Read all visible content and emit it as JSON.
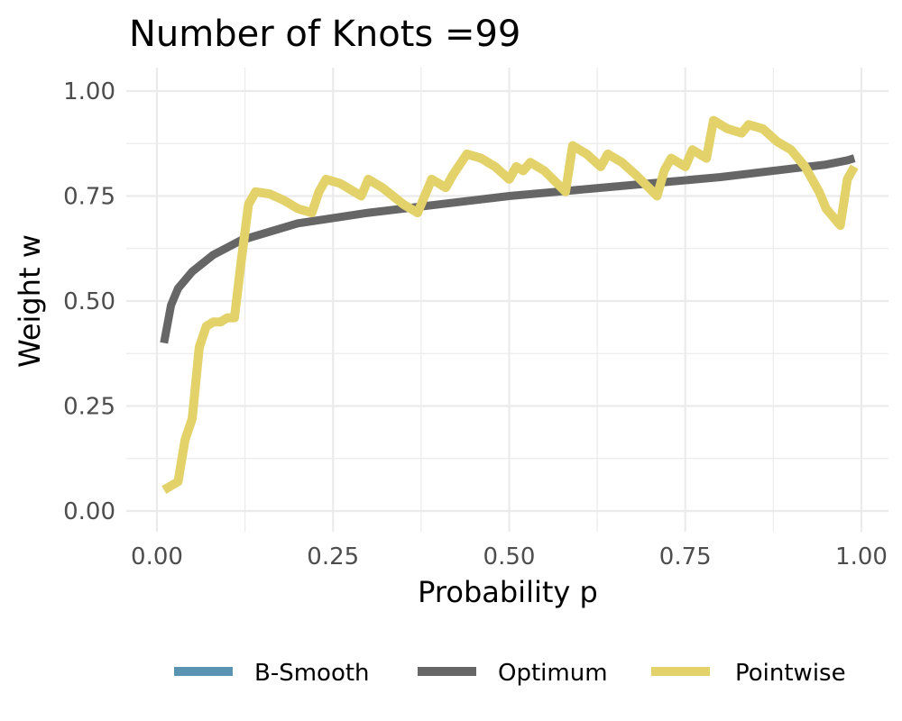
{
  "chart_data": {
    "type": "line",
    "title": "Number of Knots =99",
    "xlabel": "Probability p",
    "ylabel": "Weight w",
    "xlim": [
      -0.03,
      1.02
    ],
    "ylim": [
      -0.04,
      1.05
    ],
    "xticks": [
      "0.00",
      "0.25",
      "0.50",
      "0.75",
      "1.00"
    ],
    "yticks": [
      "0.00",
      "0.25",
      "0.50",
      "0.75",
      "1.00"
    ],
    "grid": true,
    "legend_position": "bottom",
    "series": [
      {
        "name": "B-Smooth",
        "color": "#5b93b3",
        "x": [],
        "y": []
      },
      {
        "name": "Optimum",
        "color": "#666666",
        "x": [
          0.01,
          0.02,
          0.03,
          0.05,
          0.08,
          0.12,
          0.2,
          0.3,
          0.4,
          0.5,
          0.6,
          0.7,
          0.8,
          0.9,
          0.95,
          0.98,
          0.99
        ],
        "y": [
          0.4,
          0.49,
          0.53,
          0.57,
          0.61,
          0.645,
          0.685,
          0.71,
          0.73,
          0.75,
          0.765,
          0.78,
          0.795,
          0.815,
          0.825,
          0.835,
          0.84
        ]
      },
      {
        "name": "Pointwise",
        "color": "#e2d269",
        "x": [
          0.01,
          0.02,
          0.03,
          0.04,
          0.05,
          0.06,
          0.07,
          0.08,
          0.09,
          0.1,
          0.11,
          0.12,
          0.13,
          0.14,
          0.16,
          0.18,
          0.2,
          0.22,
          0.23,
          0.24,
          0.26,
          0.28,
          0.29,
          0.3,
          0.32,
          0.35,
          0.37,
          0.39,
          0.41,
          0.42,
          0.44,
          0.46,
          0.48,
          0.5,
          0.51,
          0.52,
          0.53,
          0.55,
          0.58,
          0.59,
          0.61,
          0.63,
          0.64,
          0.66,
          0.68,
          0.71,
          0.72,
          0.73,
          0.74,
          0.75,
          0.76,
          0.78,
          0.79,
          0.81,
          0.83,
          0.84,
          0.86,
          0.88,
          0.9,
          0.92,
          0.94,
          0.95,
          0.97,
          0.98,
          0.99
        ],
        "y": [
          0.05,
          0.06,
          0.07,
          0.17,
          0.22,
          0.39,
          0.44,
          0.45,
          0.45,
          0.46,
          0.46,
          0.6,
          0.73,
          0.76,
          0.755,
          0.74,
          0.72,
          0.71,
          0.76,
          0.79,
          0.78,
          0.76,
          0.75,
          0.79,
          0.77,
          0.73,
          0.71,
          0.79,
          0.77,
          0.8,
          0.85,
          0.84,
          0.82,
          0.79,
          0.82,
          0.81,
          0.83,
          0.81,
          0.76,
          0.87,
          0.85,
          0.82,
          0.85,
          0.83,
          0.8,
          0.75,
          0.81,
          0.84,
          0.83,
          0.82,
          0.86,
          0.84,
          0.93,
          0.91,
          0.9,
          0.92,
          0.91,
          0.88,
          0.86,
          0.82,
          0.76,
          0.72,
          0.68,
          0.79,
          0.82
        ]
      }
    ]
  }
}
